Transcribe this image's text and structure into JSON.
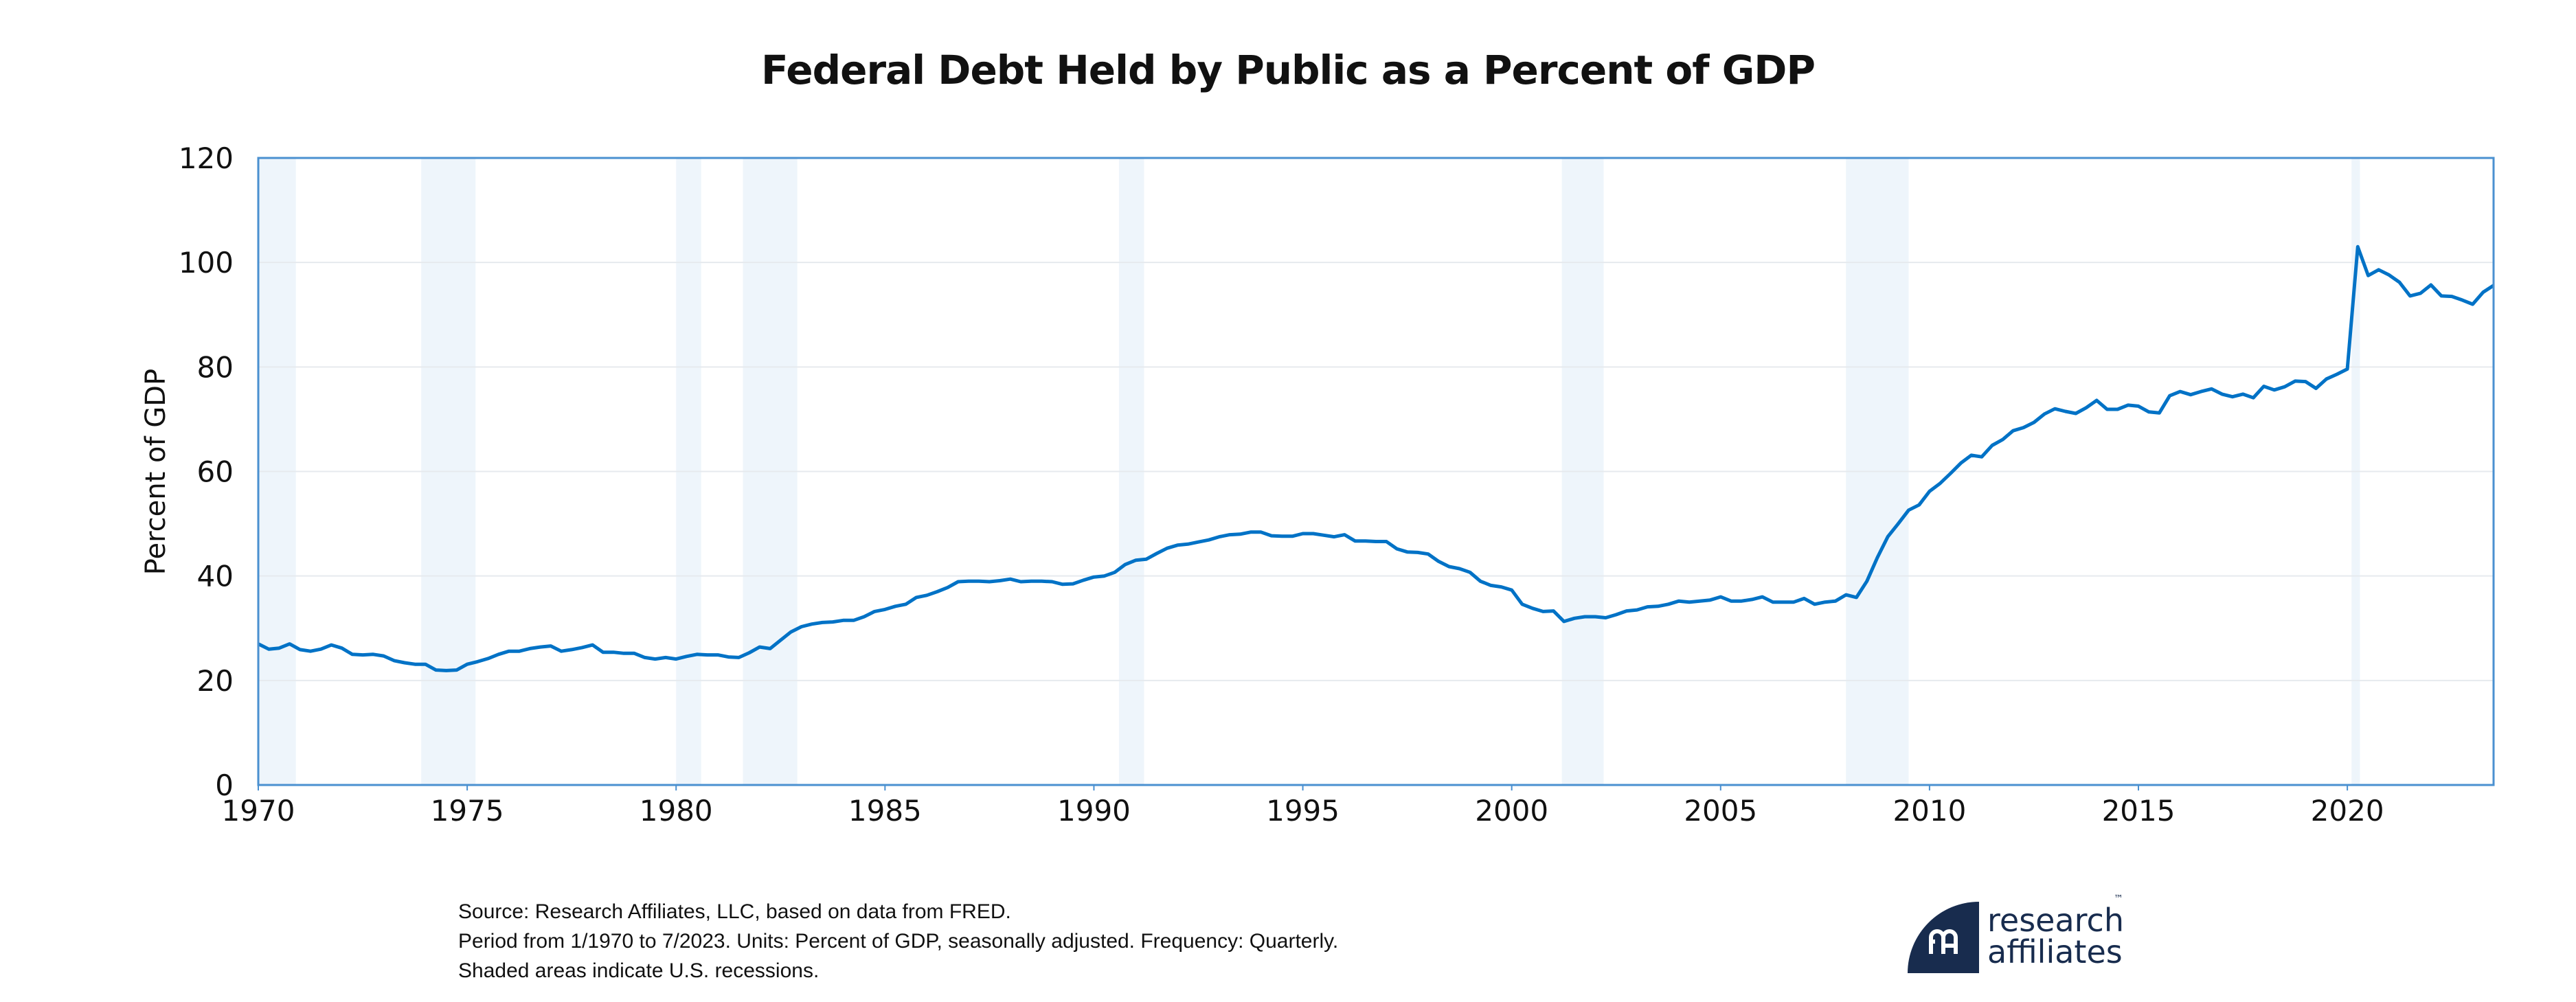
{
  "chart_data": {
    "type": "line",
    "title": "Federal Debt Held by Public as a Percent of GDP",
    "xlabel": "",
    "ylabel": "Percent of GDP",
    "xlim": [
      1970,
      2023.5
    ],
    "ylim": [
      0,
      120
    ],
    "x_ticks": [
      1970,
      1975,
      1980,
      1985,
      1990,
      1995,
      2000,
      2005,
      2010,
      2015,
      2020
    ],
    "y_ticks": [
      0,
      20,
      40,
      60,
      80,
      100,
      120
    ],
    "grid": true,
    "legend": "none",
    "frequency": "quarterly",
    "x_start": 1970,
    "x_step": 0.25,
    "series": [
      {
        "name": "Federal Debt Held by Public (% of GDP)",
        "color": "#0072c6",
        "values": [
          27.0,
          26.0,
          26.2,
          27.0,
          25.9,
          25.6,
          26.0,
          26.8,
          26.2,
          25.0,
          24.9,
          25.0,
          24.7,
          23.8,
          23.4,
          23.1,
          23.1,
          22.0,
          21.9,
          22.0,
          23.1,
          23.6,
          24.2,
          25.0,
          25.6,
          25.6,
          26.1,
          26.4,
          26.6,
          25.6,
          25.9,
          26.3,
          26.8,
          25.4,
          25.4,
          25.2,
          25.2,
          24.4,
          24.1,
          24.4,
          24.1,
          24.6,
          25.0,
          24.9,
          24.9,
          24.5,
          24.4,
          25.3,
          26.4,
          26.1,
          27.7,
          29.3,
          30.3,
          30.8,
          31.1,
          31.2,
          31.5,
          31.5,
          32.2,
          33.2,
          33.6,
          34.2,
          34.6,
          35.9,
          36.3,
          37.0,
          37.8,
          38.9,
          39.0,
          39.0,
          38.9,
          39.1,
          39.4,
          38.9,
          39.0,
          39.0,
          38.9,
          38.4,
          38.5,
          39.2,
          39.8,
          40.0,
          40.7,
          42.2,
          43.0,
          43.2,
          44.3,
          45.3,
          45.9,
          46.1,
          46.5,
          46.9,
          47.5,
          47.9,
          48.0,
          48.4,
          48.4,
          47.7,
          47.6,
          47.6,
          48.1,
          48.1,
          47.8,
          47.5,
          47.9,
          46.7,
          46.7,
          46.6,
          46.6,
          45.2,
          44.6,
          44.5,
          44.2,
          42.8,
          41.8,
          41.4,
          40.7,
          39.0,
          38.2,
          37.9,
          37.3,
          34.6,
          33.8,
          33.2,
          33.3,
          31.3,
          31.9,
          32.2,
          32.2,
          32.0,
          32.6,
          33.3,
          33.5,
          34.1,
          34.2,
          34.6,
          35.2,
          35.0,
          35.2,
          35.4,
          36.0,
          35.2,
          35.2,
          35.5,
          36.0,
          35.0,
          35.0,
          35.0,
          35.7,
          34.6,
          35.0,
          35.2,
          36.4,
          35.9,
          39.0,
          43.5,
          47.5,
          50.0,
          52.6,
          53.6,
          56.2,
          57.7,
          59.6,
          61.6,
          63.1,
          62.8,
          65.0,
          66.1,
          67.8,
          68.4,
          69.4,
          71.0,
          72.0,
          71.5,
          71.1,
          72.2,
          73.6,
          71.9,
          71.9,
          72.7,
          72.5,
          71.4,
          71.2,
          74.5,
          75.3,
          74.7,
          75.3,
          75.8,
          74.8,
          74.3,
          74.8,
          74.1,
          76.3,
          75.6,
          76.2,
          77.3,
          77.2,
          75.9,
          77.7,
          78.6,
          79.6,
          103.0,
          97.5,
          98.6,
          97.6,
          96.2,
          93.6,
          94.1,
          95.7,
          93.6,
          93.5,
          92.8,
          92.0,
          94.3,
          95.6
        ]
      }
    ],
    "recessions": [
      [
        1970.0,
        1970.9
      ],
      [
        1973.9,
        1975.2
      ],
      [
        1980.0,
        1980.6
      ],
      [
        1981.6,
        1982.9
      ],
      [
        1990.6,
        1991.2
      ],
      [
        2001.2,
        2002.2
      ],
      [
        2008.0,
        2009.5
      ],
      [
        2020.1,
        2020.3
      ]
    ],
    "recession_color": "#eef5fb",
    "frame_color": "#4a90d0"
  },
  "footer": {
    "line1": "Source: Research Affiliates, LLC, based on data from FRED.",
    "line2": "Period from 1/1970 to 7/2023.  Units: Percent of GDP, seasonally adjusted. Frequency: Quarterly.",
    "line3": "Shaded areas indicate U.S. recessions."
  },
  "logo": {
    "line1": "research",
    "line2": "affiliates",
    "trademark": "™",
    "color": "#182c4e"
  }
}
